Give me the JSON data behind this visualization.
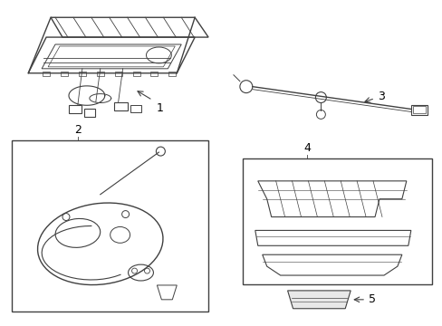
{
  "background_color": "#ffffff",
  "line_color": "#404040",
  "label_color": "#000000",
  "fig_width": 4.89,
  "fig_height": 3.6,
  "dpi": 100
}
